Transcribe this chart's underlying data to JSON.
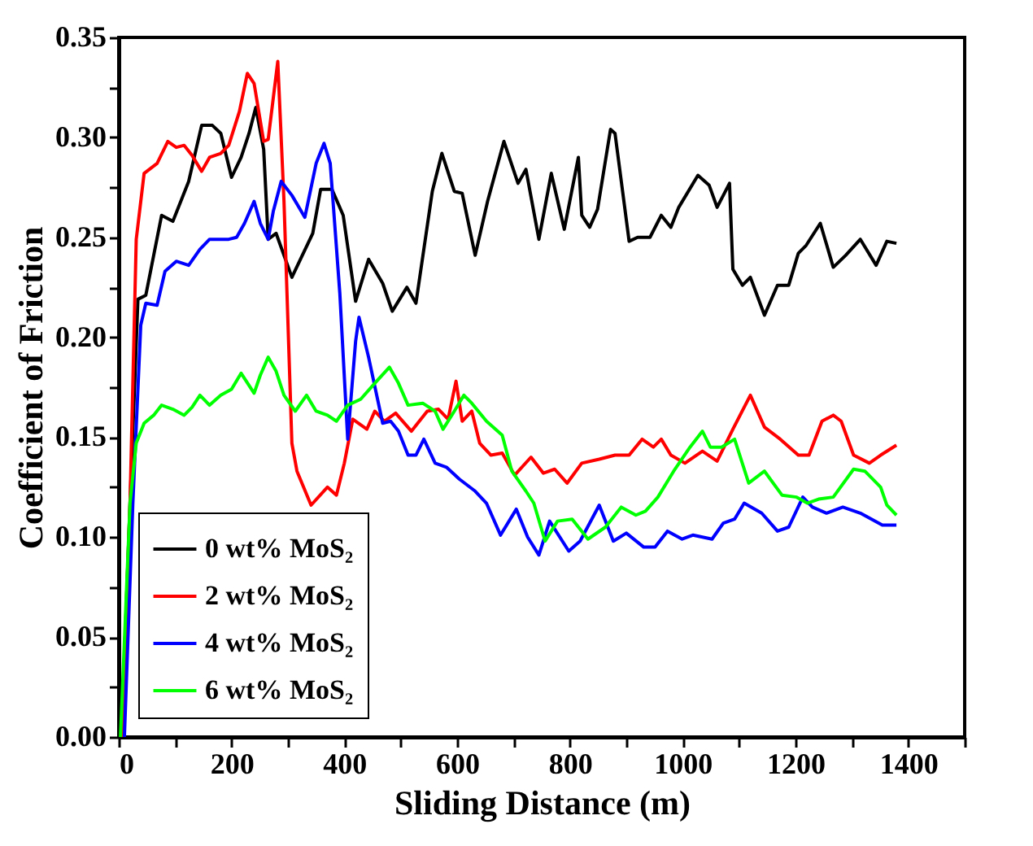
{
  "chart_data": {
    "type": "line",
    "xlabel": "Sliding Distance (m)",
    "ylabel": "Coefficient of Friction",
    "xlim": [
      0,
      1500
    ],
    "ylim": [
      0,
      0.35
    ],
    "xticks": [
      0,
      {
        "value": 100,
        "label": null
      },
      200,
      {
        "value": 300,
        "label": null
      },
      400,
      {
        "value": 500,
        "label": null
      },
      600,
      {
        "value": 700,
        "label": null
      },
      800,
      {
        "value": 900,
        "label": null
      },
      1000,
      {
        "value": 1100,
        "label": null
      },
      1200,
      {
        "value": 1300,
        "label": null
      },
      1400,
      {
        "value": 1500,
        "label": null
      }
    ],
    "yticks": [
      {
        "value": 0,
        "label": "0.00"
      },
      {
        "value": 0.025,
        "label": null
      },
      {
        "value": 0.05,
        "label": "0.05"
      },
      {
        "value": 0.075,
        "label": null
      },
      {
        "value": 0.1,
        "label": "0.10"
      },
      {
        "value": 0.125,
        "label": null
      },
      {
        "value": 0.15,
        "label": "0.15"
      },
      {
        "value": 0.175,
        "label": null
      },
      {
        "value": 0.2,
        "label": "0.20"
      },
      {
        "value": 0.225,
        "label": null
      },
      {
        "value": 0.25,
        "label": "0.25"
      },
      {
        "value": 0.275,
        "label": null
      },
      {
        "value": 0.3,
        "label": "0.30"
      },
      {
        "value": 0.325,
        "label": null
      },
      {
        "value": 0.35,
        "label": "0.35"
      }
    ],
    "grid": false,
    "legend": "bottom left",
    "marker": "none",
    "line_style": "solid",
    "series": [
      {
        "name": "0 wt% MoS₂",
        "color": "#000000",
        "x": [
          5,
          20,
          34,
          48,
          76,
          96,
          124,
          147,
          166,
          181,
          200,
          217,
          231,
          243,
          257,
          265,
          279,
          307,
          344,
          358,
          378,
          398,
          420,
          443,
          468,
          485,
          511,
          527,
          556,
          573,
          595,
          609,
          632,
          654,
          683,
          708,
          722,
          745,
          767,
          790,
          815,
          821,
          835,
          849,
          872,
          880,
          905,
          920,
          942,
          962,
          979,
          993,
          1027,
          1047,
          1061,
          1083,
          1089,
          1106,
          1120,
          1145,
          1168,
          1188,
          1205,
          1219,
          1244,
          1267,
          1289,
          1315,
          1343,
          1362,
          1379
        ],
        "values": [
          0,
          0.117,
          0.219,
          0.221,
          0.261,
          0.258,
          0.278,
          0.306,
          0.306,
          0.302,
          0.28,
          0.29,
          0.302,
          0.315,
          0.294,
          0.249,
          0.252,
          0.23,
          0.252,
          0.274,
          0.274,
          0.261,
          0.218,
          0.239,
          0.227,
          0.213,
          0.225,
          0.217,
          0.273,
          0.292,
          0.273,
          0.272,
          0.241,
          0.268,
          0.298,
          0.277,
          0.284,
          0.249,
          0.282,
          0.254,
          0.29,
          0.261,
          0.255,
          0.264,
          0.304,
          0.302,
          0.248,
          0.25,
          0.25,
          0.261,
          0.255,
          0.265,
          0.281,
          0.276,
          0.265,
          0.277,
          0.234,
          0.226,
          0.23,
          0.211,
          0.226,
          0.226,
          0.242,
          0.246,
          0.257,
          0.235,
          0.241,
          0.249,
          0.236,
          0.248,
          0.247
        ]
      },
      {
        "name": "2 wt% MoS₂",
        "color": "#ff0000",
        "x": [
          5,
          20,
          31,
          45,
          68,
          87,
          102,
          116,
          130,
          147,
          161,
          181,
          195,
          214,
          228,
          240,
          257,
          265,
          282,
          293,
          307,
          316,
          341,
          370,
          386,
          400,
          415,
          440,
          454,
          471,
          491,
          519,
          547,
          567,
          584,
          598,
          609,
          626,
          640,
          660,
          680,
          702,
          731,
          753,
          773,
          795,
          821,
          852,
          880,
          905,
          928,
          948,
          962,
          979,
          1004,
          1035,
          1061,
          1089,
          1120,
          1145,
          1173,
          1205,
          1224,
          1247,
          1267,
          1281,
          1303,
          1331,
          1351,
          1379
        ],
        "values": [
          0,
          0.117,
          0.249,
          0.282,
          0.287,
          0.298,
          0.295,
          0.296,
          0.291,
          0.283,
          0.29,
          0.292,
          0.296,
          0.313,
          0.332,
          0.327,
          0.298,
          0.299,
          0.338,
          0.268,
          0.147,
          0.133,
          0.116,
          0.125,
          0.121,
          0.137,
          0.159,
          0.154,
          0.163,
          0.158,
          0.162,
          0.153,
          0.163,
          0.164,
          0.159,
          0.178,
          0.158,
          0.163,
          0.147,
          0.141,
          0.142,
          0.131,
          0.14,
          0.132,
          0.134,
          0.127,
          0.137,
          0.139,
          0.141,
          0.141,
          0.149,
          0.145,
          0.149,
          0.141,
          0.137,
          0.143,
          0.138,
          0.154,
          0.171,
          0.155,
          0.149,
          0.141,
          0.141,
          0.158,
          0.161,
          0.158,
          0.141,
          0.137,
          0.141,
          0.146
        ]
      },
      {
        "name": "4 wt% MoS₂",
        "color": "#0000ff",
        "x": [
          10,
          25,
          39,
          48,
          68,
          82,
          102,
          124,
          144,
          161,
          181,
          195,
          209,
          223,
          240,
          251,
          265,
          274,
          288,
          307,
          330,
          350,
          364,
          375,
          392,
          406,
          420,
          426,
          443,
          468,
          482,
          496,
          513,
          527,
          541,
          561,
          581,
          604,
          632,
          652,
          677,
          705,
          725,
          745,
          764,
          798,
          818,
          852,
          877,
          900,
          931,
          951,
          973,
          999,
          1018,
          1052,
          1072,
          1092,
          1109,
          1140,
          1168,
          1188,
          1213,
          1230,
          1255,
          1284,
          1315,
          1354,
          1379
        ],
        "values": [
          0,
          0.117,
          0.206,
          0.217,
          0.216,
          0.233,
          0.238,
          0.236,
          0.244,
          0.249,
          0.249,
          0.249,
          0.25,
          0.257,
          0.268,
          0.257,
          0.249,
          0.263,
          0.278,
          0.271,
          0.26,
          0.287,
          0.297,
          0.287,
          0.222,
          0.149,
          0.198,
          0.21,
          0.19,
          0.157,
          0.158,
          0.153,
          0.141,
          0.141,
          0.149,
          0.137,
          0.135,
          0.129,
          0.123,
          0.117,
          0.101,
          0.114,
          0.1,
          0.091,
          0.108,
          0.093,
          0.098,
          0.116,
          0.098,
          0.102,
          0.095,
          0.095,
          0.103,
          0.099,
          0.101,
          0.099,
          0.107,
          0.109,
          0.117,
          0.112,
          0.103,
          0.105,
          0.12,
          0.115,
          0.112,
          0.115,
          0.112,
          0.106,
          0.106
        ]
      },
      {
        "name": "6 wt% MoS₂",
        "color": "#00ff00",
        "x": [
          3,
          6,
          20,
          31,
          45,
          62,
          76,
          96,
          116,
          130,
          144,
          161,
          181,
          200,
          217,
          240,
          251,
          265,
          279,
          293,
          313,
          333,
          350,
          370,
          386,
          406,
          429,
          454,
          480,
          496,
          513,
          539,
          561,
          575,
          595,
          612,
          626,
          652,
          680,
          697,
          722,
          736,
          756,
          778,
          804,
          832,
          863,
          891,
          917,
          934,
          956,
          984,
          1013,
          1035,
          1049,
          1069,
          1092,
          1117,
          1145,
          1176,
          1202,
          1221,
          1241,
          1267,
          1303,
          1323,
          1351,
          1362,
          1379
        ],
        "values": [
          0,
          0.02,
          0.117,
          0.147,
          0.157,
          0.161,
          0.166,
          0.164,
          0.161,
          0.165,
          0.171,
          0.166,
          0.171,
          0.174,
          0.182,
          0.172,
          0.181,
          0.19,
          0.183,
          0.171,
          0.163,
          0.171,
          0.163,
          0.161,
          0.158,
          0.166,
          0.169,
          0.177,
          0.185,
          0.177,
          0.166,
          0.167,
          0.163,
          0.154,
          0.163,
          0.171,
          0.167,
          0.158,
          0.151,
          0.133,
          0.123,
          0.117,
          0.098,
          0.108,
          0.109,
          0.099,
          0.105,
          0.115,
          0.111,
          0.113,
          0.12,
          0.133,
          0.145,
          0.153,
          0.145,
          0.145,
          0.149,
          0.127,
          0.133,
          0.121,
          0.12,
          0.117,
          0.119,
          0.12,
          0.134,
          0.133,
          0.125,
          0.116,
          0.111
        ]
      }
    ]
  }
}
